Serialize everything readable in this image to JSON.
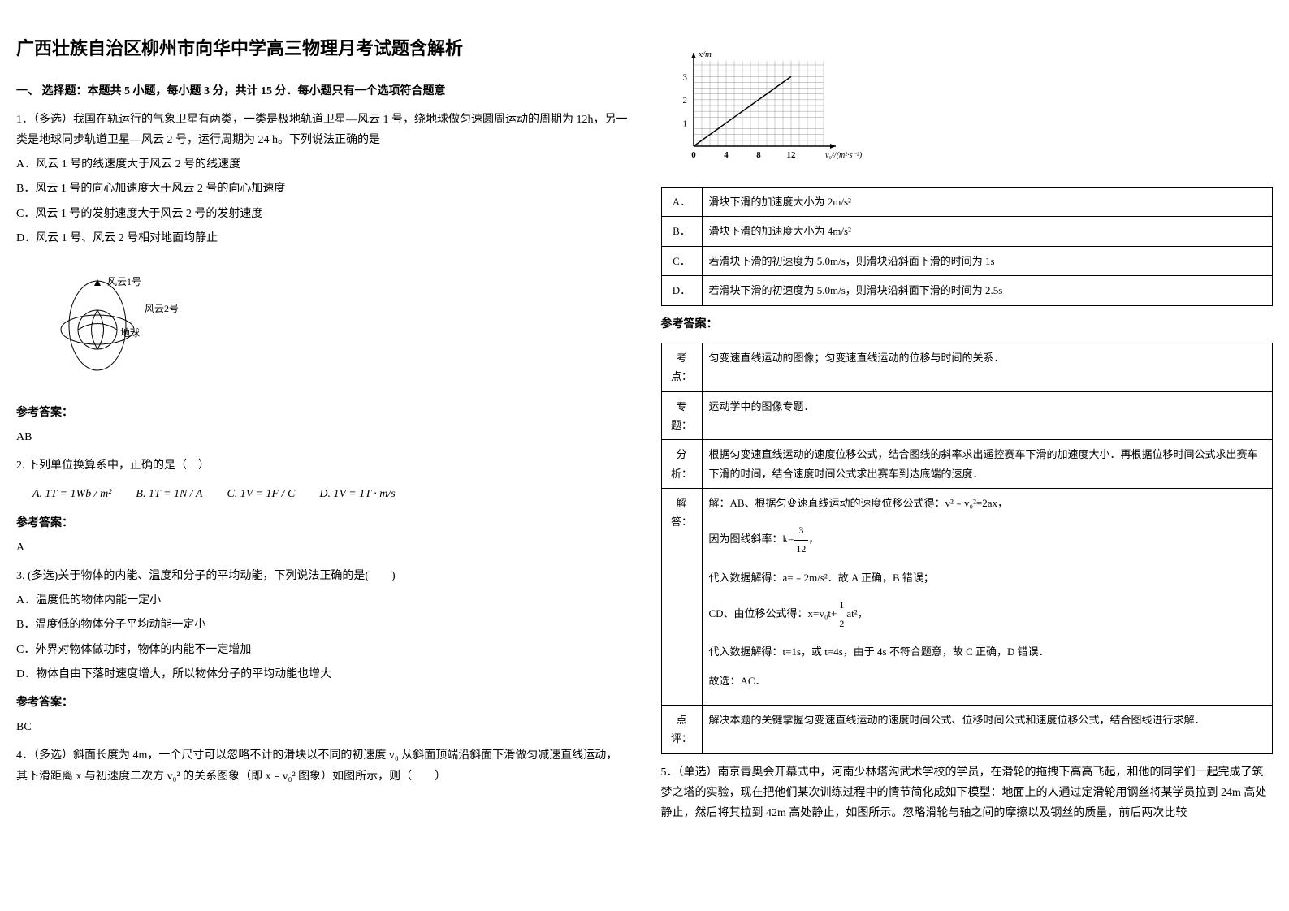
{
  "title": "广西壮族自治区柳州市向华中学高三物理月考试题含解析",
  "section_header": "一、 选择题：本题共 5 小题，每小题 3 分，共计 15 分．每小题只有一个选项符合题意",
  "q1": {
    "stem": "1．（多选）我国在轨运行的气象卫星有两类，一类是极地轨道卫星—风云 1 号，绕地球做匀速圆周运动的周期为 12h，另一类是地球同步轨道卫星—风云 2 号，运行周期为 24 h。下列说法正确的是",
    "options": {
      "A": "A．风云 1 号的线速度大于风云 2 号的线速度",
      "B": "B．风云 1 号的向心加速度大于风云 2 号的向心加速度",
      "C": "C．风云 1 号的发射速度大于风云 2 号的发射速度",
      "D": "D．风云 1 号、风云 2 号相对地面均静止"
    },
    "labels": {
      "sat1": "风云1号",
      "sat2": "风云2号",
      "earth": "地球"
    },
    "answer_label": "参考答案：",
    "answer": "AB"
  },
  "q2": {
    "stem": "2. 下列单位换算系中，正确的是（　）",
    "formulas": {
      "A": "A. 1T = 1Wb / m²",
      "B": "B. 1T = 1N / A",
      "C": "C. 1V = 1F / C",
      "D": "D. 1V = 1T · m/s"
    },
    "answer_label": "参考答案：",
    "answer": "A"
  },
  "q3": {
    "stem": "3. (多选)关于物体的内能、温度和分子的平均动能，下列说法正确的是(　　)",
    "options": {
      "A": "A．温度低的物体内能一定小",
      "B": "B．温度低的物体分子平均动能一定小",
      "C": "C．外界对物体做功时，物体的内能不一定增加",
      "D": "D．物体自由下落时速度增大，所以物体分子的平均动能也增大"
    },
    "answer_label": "参考答案：",
    "answer": "BC"
  },
  "q4": {
    "stem": "4．（多选）斜面长度为 4m，一个尺寸可以忽略不计的滑块以不同的初速度 v₀ 从斜面顶端沿斜面下滑做匀减速直线运动，其下滑距离 x 与初速度二次方 v₀² 的关系图象（即 x﹣v₀² 图象）如图所示，则（　　）",
    "chart": {
      "type": "line",
      "x_label": "v₀²/(m²·s⁻²)",
      "y_label": "x/m",
      "x_ticks": [
        0,
        4,
        8,
        12
      ],
      "y_ticks": [
        1,
        2,
        3
      ],
      "xlim": [
        0,
        16
      ],
      "ylim": [
        0,
        3.5
      ],
      "grid_color": "#999999",
      "line_color": "#000000",
      "background_color": "#ffffff",
      "line_points": [
        [
          0,
          0
        ],
        [
          12,
          3
        ]
      ]
    },
    "option_rows": [
      [
        "A．",
        "滑块下滑的加速度大小为 2m/s²"
      ],
      [
        "B．",
        "滑块下滑的加速度大小为 4m/s²"
      ],
      [
        "C．",
        "若滑块下滑的初速度为 5.0m/s，则滑块沿斜面下滑的时间为 1s"
      ],
      [
        "D．",
        "若滑块下滑的初速度为 5.0m/s，则滑块沿斜面下滑的时间为 2.5s"
      ]
    ],
    "answer_label": "参考答案：",
    "solution_rows": [
      [
        "考点：",
        "匀变速直线运动的图像；匀变速直线运动的位移与时间的关系．"
      ],
      [
        "专题：",
        "运动学中的图像专题．"
      ],
      [
        "分析：",
        "根据匀变速直线运动的速度位移公式，结合图线的斜率求出遥控赛车下滑的加速度大小．再根据位移时间公式求出赛车下滑的时间，结合速度时间公式求出赛车到达底端的速度．"
      ]
    ],
    "solution_header": [
      "解答：",
      "解：AB、根据匀变速直线运动的速度位移公式得：v²﹣v₀²=2ax，"
    ],
    "solution_slope_prefix": "因为图线斜率：k=",
    "solution_slope_num": "3",
    "solution_slope_den": "12",
    "solution_slope_suffix": "，",
    "solution_sub1": "代入数据解得：a=﹣2m/s²．故 A 正确，B 错误；",
    "solution_cd_prefix": "CD、由位移公式得：x=v₀t+",
    "solution_cd_num": "1",
    "solution_cd_den": "2",
    "solution_cd_suffix": "at²，",
    "solution_sub2": "代入数据解得：t=1s，或 t=4s，由于 4s 不符合题意，故 C 正确，D 错误．",
    "solution_conclusion": "故选：AC．",
    "comment_row": [
      "点评：",
      "解决本题的关键掌握匀变速直线运动的速度时间公式、位移时间公式和速度位移公式，结合图线进行求解．"
    ]
  },
  "q5": {
    "stem": "5．（单选）南京青奥会开幕式中，河南少林塔沟武术学校的学员，在滑轮的拖拽下高高飞起，和他的同学们一起完成了筑梦之塔的实验，现在把他们某次训练过程中的情节简化成如下模型：地面上的人通过定滑轮用钢丝将某学员拉到 24m 高处静止，然后将其拉到 42m 高处静止，如图所示。忽略滑轮与轴之间的摩擦以及钢丝的质量，前后两次比较"
  }
}
